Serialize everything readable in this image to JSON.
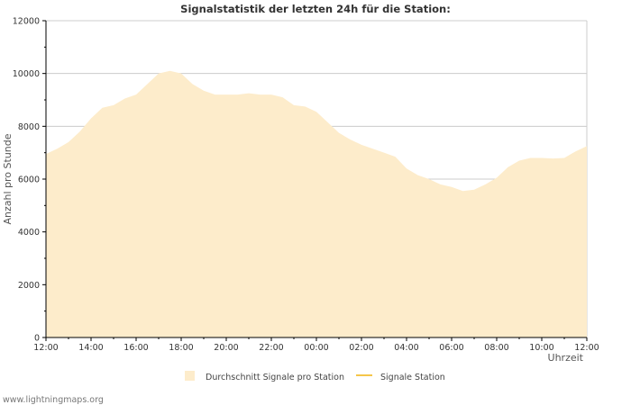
{
  "colors": {
    "area_fill": "#fdeccb",
    "line": "#f5c64a",
    "grid": "#cccccc",
    "axis": "#000000"
  },
  "chart_data": {
    "type": "area",
    "title": "Signalstatistik der letzten 24h für die Station:",
    "ylabel": "Anzahl pro Stunde",
    "xlabel": "Uhrzeit",
    "ylim": [
      0,
      12000
    ],
    "yticks": [
      0,
      2000,
      4000,
      6000,
      8000,
      10000,
      12000
    ],
    "y_tick_labels": [
      "0",
      "2000",
      "4000",
      "6000",
      "8000",
      "10000",
      "12000"
    ],
    "xlim": [
      0,
      24
    ],
    "xticks": [
      0,
      2,
      4,
      6,
      8,
      10,
      12,
      14,
      16,
      18,
      20,
      22,
      24
    ],
    "x_tick_labels": [
      "12:00",
      "14:00",
      "16:00",
      "18:00",
      "20:00",
      "22:00",
      "00:00",
      "02:00",
      "04:00",
      "06:00",
      "08:00",
      "10:00",
      "12:00"
    ],
    "grid": true,
    "legend_position": "bottom",
    "series": [
      {
        "name": "Durchschnitt Signale pro Station",
        "style": "area",
        "x": [
          0,
          0.5,
          1,
          1.5,
          2,
          2.5,
          3,
          3.5,
          4,
          4.5,
          5,
          5.5,
          6,
          6.5,
          7,
          7.5,
          8,
          8.5,
          9,
          9.5,
          10,
          10.5,
          11,
          11.5,
          12,
          12.5,
          13,
          13.5,
          14,
          14.5,
          15,
          15.5,
          16,
          16.5,
          17,
          17.5,
          18,
          18.5,
          19,
          19.5,
          20,
          20.5,
          21,
          21.5,
          22,
          22.5,
          23,
          23.5,
          24
        ],
        "values": [
          6950,
          7150,
          7400,
          7800,
          8300,
          8700,
          8800,
          9050,
          9200,
          9600,
          10000,
          10100,
          10000,
          9600,
          9350,
          9200,
          9200,
          9200,
          9250,
          9200,
          9200,
          9100,
          8800,
          8750,
          8550,
          8150,
          7750,
          7500,
          7300,
          7150,
          7000,
          6850,
          6400,
          6150,
          6000,
          5800,
          5700,
          5550,
          5600,
          5800,
          6050,
          6450,
          6700,
          6800,
          6800,
          6780,
          6800,
          7050,
          7250
        ]
      },
      {
        "name": "Signale Station",
        "style": "line",
        "x": [],
        "values": []
      }
    ]
  },
  "footer": "www.lightningmaps.org"
}
